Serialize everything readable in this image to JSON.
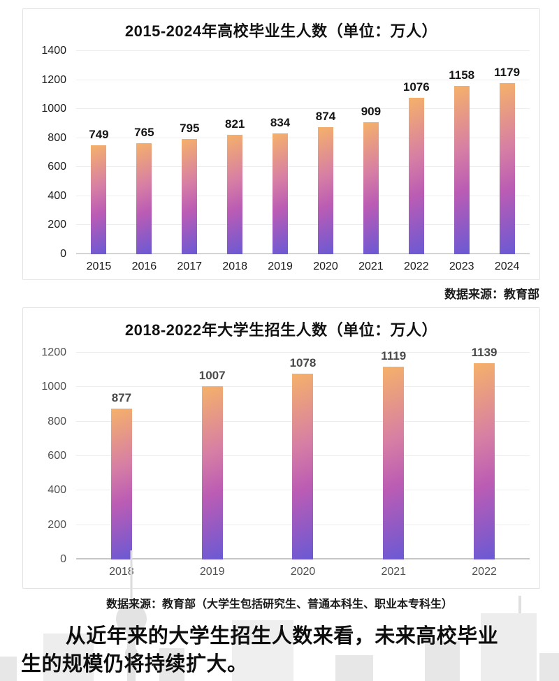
{
  "chart_data": [
    {
      "type": "bar",
      "title": "2015-2024年高校毕业生人数（单位：万人）",
      "categories": [
        "2015",
        "2016",
        "2017",
        "2018",
        "2019",
        "2020",
        "2021",
        "2022",
        "2023",
        "2024"
      ],
      "values": [
        749,
        765,
        795,
        821,
        834,
        874,
        909,
        1076,
        1158,
        1179
      ],
      "xlabel": "",
      "ylabel": "",
      "unit": "万人",
      "ylim": [
        0,
        1400
      ],
      "ytick_step": 200,
      "grid": true,
      "legend": "none",
      "source": "数据来源：教育部"
    },
    {
      "type": "bar",
      "title": "2018-2022年大学生招生人数（单位：万人）",
      "categories": [
        "2018",
        "2019",
        "2020",
        "2021",
        "2022"
      ],
      "values": [
        877,
        1007,
        1078,
        1119,
        1139
      ],
      "xlabel": "",
      "ylabel": "",
      "unit": "万人",
      "ylim": [
        0,
        1200
      ],
      "ytick_step": 200,
      "grid": true,
      "legend": "none",
      "source": "数据来源：教育部（大学生包括研究生、普通本科生、职业本专科生）"
    }
  ],
  "sources": {
    "chart1": "数据来源：教育部",
    "chart2": "数据来源：教育部（大学生包括研究生、普通本科生、职业本专科生）"
  },
  "footer": {
    "text": "从近年来的大学生招生人数来看，未来高校毕业生的规模仍将持续扩大。"
  },
  "style": {
    "bar_gradient": [
      "#f5b169",
      "#d77fa4",
      "#bb5cb4",
      "#6a59d4"
    ],
    "chart1_label_color": "#1a1a1a",
    "chart1_value_color": "#161616",
    "chart2_label_color": "#4f4f4f",
    "chart2_value_color": "#4a4a4a",
    "grid_color": "#ededed",
    "axis_color_chart1": "#d4d4d4",
    "axis_color_chart2": "#c6c6c6",
    "watermark_color": "#e7e7e7"
  }
}
